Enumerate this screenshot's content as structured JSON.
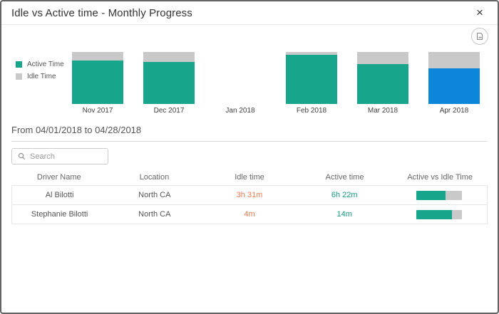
{
  "modal": {
    "title": "Idle vs Active time - Monthly Progress",
    "close_glyph": "×"
  },
  "chart_data": {
    "type": "bar",
    "stacked": true,
    "title": "Idle vs Active time - Monthly Progress",
    "categories": [
      "Nov 2017",
      "Dec 2017",
      "Jan 2018",
      "Feb 2018",
      "Mar 2018",
      "Apr 2018"
    ],
    "series": [
      {
        "name": "Active Time",
        "color": "#17a68c",
        "values_pct": [
          83,
          81,
          0,
          94,
          77,
          68
        ]
      },
      {
        "name": "Idle Time",
        "color": "#c9c9c9",
        "values_pct": [
          17,
          19,
          0,
          6,
          23,
          32
        ]
      }
    ],
    "highlighted_category": "Apr 2018",
    "highlight_color": "#0c86d8",
    "ylim_pct": [
      0,
      100
    ],
    "grid": false,
    "legend_position": "top-left",
    "axes_visible": false
  },
  "filter": {
    "date_range": "From 04/01/2018 to 04/28/2018",
    "search_placeholder": "Search"
  },
  "table": {
    "columns": [
      "Driver Name",
      "Location",
      "Idle time",
      "Active time",
      "Active vs Idle Time"
    ],
    "progress_fill_color": "#17a68c",
    "progress_track_color": "#c9c9c9",
    "idle_text_color": "#e87a50",
    "active_text_color": "#149b80",
    "rows": [
      {
        "driver": "Al Bilotti",
        "location": "North CA",
        "idle_time": "3h 31m",
        "active_time": "6h 22m",
        "active_pct": 64
      },
      {
        "driver": "Stephanie Bilotti",
        "location": "North CA",
        "idle_time": "4m",
        "active_time": "14m",
        "active_pct": 78
      }
    ]
  }
}
